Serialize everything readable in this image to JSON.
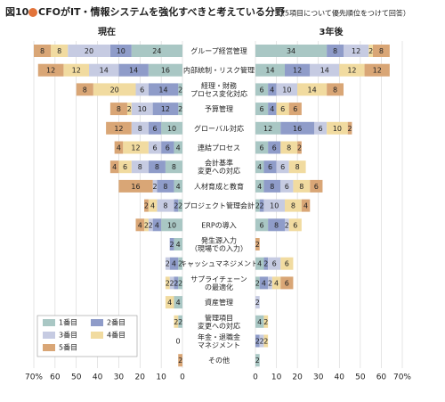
{
  "chart_data": {
    "type": "butterfly",
    "figure_label": "図10",
    "title": "CFOがIT・情報システムを強化すべきと考えている分野",
    "subtitle": "（5項目について優先順位をつけて回答）",
    "categories": [
      [
        "グループ経営管理"
      ],
      [
        "内部統制・リスク管理"
      ],
      [
        "経理・財務",
        "プロセス変化対応"
      ],
      [
        "予算管理"
      ],
      [
        "グローバル対応"
      ],
      [
        "連結プロセス"
      ],
      [
        "会計基準",
        "変更への対応"
      ],
      [
        "人材育成と教育"
      ],
      [
        "プロジェクト管理会計"
      ],
      [
        "ERPの導入"
      ],
      [
        "発生源入力",
        "（現場での入力）"
      ],
      [
        "キャッシュマネジメント"
      ],
      [
        "サプライチェーン",
        "の最適化"
      ],
      [
        "資産管理"
      ],
      [
        "管理項目",
        "変更への対応"
      ],
      [
        "年金・退職金",
        "マネジメント"
      ],
      [
        "その他"
      ]
    ],
    "xlim": [
      0,
      70
    ],
    "xticks": [
      {
        "value": 70,
        "label": "70%"
      },
      60,
      50,
      40,
      30,
      20,
      10,
      0
    ],
    "grid": true,
    "panels": [
      {
        "title": "現在",
        "side": "left",
        "series": [
          {
            "name": "1番目",
            "color": "#a9c7c4",
            "values": [
              24,
              16,
              2,
              2,
              10,
              4,
              8,
              4,
              2,
              10,
              4,
              2,
              2,
              4,
              2,
              0,
              null
            ]
          },
          {
            "name": "2番目",
            "color": "#8f9cc9",
            "values": [
              10,
              14,
              14,
              12,
              6,
              6,
              8,
              8,
              2,
              4,
              2,
              4,
              2,
              null,
              null,
              null,
              null
            ]
          },
          {
            "name": "3番目",
            "color": "#c6cbe2",
            "values": [
              20,
              14,
              6,
              10,
              8,
              6,
              8,
              2,
              8,
              2,
              null,
              2,
              2,
              null,
              null,
              null,
              null
            ]
          },
          {
            "name": "4番目",
            "color": "#f1dba0",
            "values": [
              8,
              12,
              20,
              2,
              null,
              12,
              6,
              null,
              4,
              2,
              null,
              null,
              2,
              4,
              2,
              null,
              null
            ]
          },
          {
            "name": "5番目",
            "color": "#d9a676",
            "values": [
              8,
              12,
              8,
              8,
              12,
              4,
              4,
              16,
              2,
              4,
              null,
              null,
              null,
              null,
              null,
              null,
              2
            ]
          }
        ]
      },
      {
        "title": "3年後",
        "side": "right",
        "series": [
          {
            "name": "1番目",
            "color": "#a9c7c4",
            "values": [
              34,
              14,
              6,
              6,
              12,
              6,
              4,
              4,
              2,
              6,
              null,
              4,
              2,
              null,
              4,
              null,
              2
            ]
          },
          {
            "name": "2番目",
            "color": "#8f9cc9",
            "values": [
              8,
              12,
              4,
              4,
              16,
              6,
              6,
              8,
              2,
              8,
              null,
              2,
              4,
              null,
              null,
              2,
              null
            ]
          },
          {
            "name": "3番目",
            "color": "#c6cbe2",
            "values": [
              12,
              14,
              10,
              null,
              6,
              null,
              6,
              6,
              10,
              2,
              null,
              6,
              2,
              2,
              null,
              2,
              null
            ]
          },
          {
            "name": "4番目",
            "color": "#f1dba0",
            "values": [
              2,
              12,
              14,
              6,
              10,
              8,
              8,
              8,
              8,
              6,
              null,
              6,
              4,
              null,
              2,
              2,
              null
            ]
          },
          {
            "name": "5番目",
            "color": "#d9a676",
            "values": [
              8,
              12,
              8,
              6,
              2,
              2,
              null,
              6,
              4,
              null,
              2,
              null,
              6,
              null,
              null,
              null,
              null
            ]
          }
        ]
      }
    ]
  }
}
